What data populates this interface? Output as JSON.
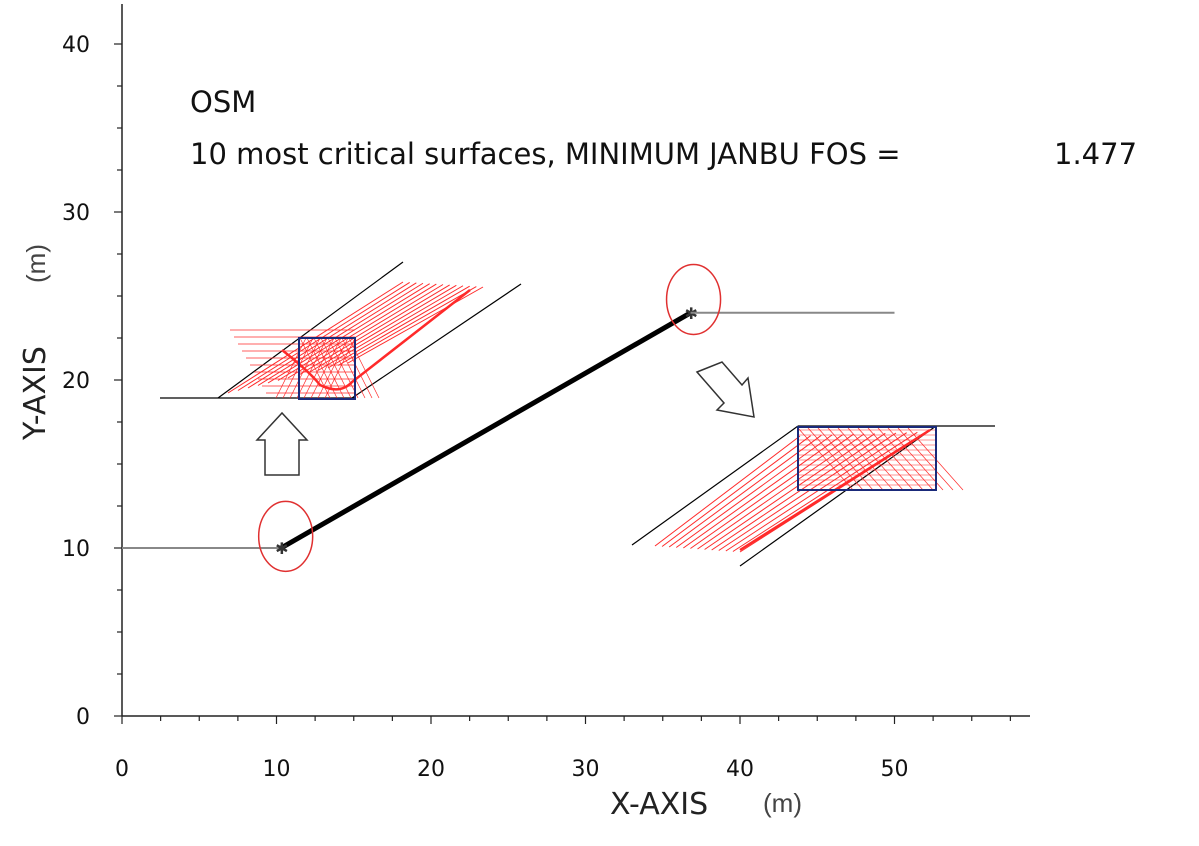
{
  "chart_data": {
    "type": "line",
    "annotations": {
      "method": "OSM",
      "summary": "10 most critical surfaces, MINIMUM JANBU FOS =",
      "fos_value": "1.477"
    },
    "xlabel": "X-AXIS",
    "xlabel_unit": "(m)",
    "ylabel": "Y-AXIS",
    "ylabel_unit": "(m)",
    "xlim": [
      0,
      59
    ],
    "ylim": [
      0,
      42
    ],
    "x_ticks": [
      0,
      10,
      20,
      30,
      40,
      50
    ],
    "y_ticks": [
      0,
      10,
      20,
      30,
      40
    ],
    "grid": false,
    "series": [
      {
        "color": "#888888",
        "points": [
          [
            0,
            10
          ],
          [
            10.3,
            10
          ]
        ]
      },
      {
        "color": "#000000",
        "points": [
          [
            10.3,
            10
          ],
          [
            36.8,
            24
          ]
        ]
      },
      {
        "color": "#888888",
        "points": [
          [
            36.8,
            24
          ],
          [
            50,
            24
          ]
        ]
      }
    ],
    "highlights": [
      {
        "x": 10.4,
        "y": 10.1,
        "color": "#e03030"
      },
      {
        "x": 36.8,
        "y": 24.2,
        "color": "#e03030"
      }
    ],
    "colors": {
      "surface": "#ff2a2a",
      "box": "#1a2a7a",
      "slope": "#000000",
      "ground": "#888888"
    }
  }
}
